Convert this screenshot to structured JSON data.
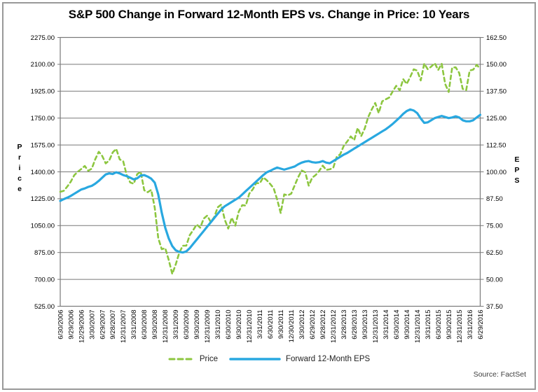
{
  "source": "Source: FactSet",
  "chart_data": {
    "type": "line",
    "title": "S&P 500 Change in Forward 12-Month EPS vs. Change in Price: 10 Years",
    "grid": true,
    "grid_color": "#787878",
    "legend_position": "bottom",
    "x_points_per_tick": 3,
    "x_tick_labels": [
      "6/30/2006",
      "9/29/2006",
      "12/29/2006",
      "3/30/2007",
      "6/29/2007",
      "9/28/2007",
      "12/31/2007",
      "3/31/2008",
      "6/30/2008",
      "9/30/2008",
      "12/31/2008",
      "3/31/2009",
      "6/30/2009",
      "9/30/2009",
      "12/31/2009",
      "3/31/2010",
      "6/30/2010",
      "9/30/2010",
      "12/31/2010",
      "3/31/2011",
      "6/30/2011",
      "9/30/2011",
      "12/30/2011",
      "3/30/2012",
      "6/29/2012",
      "9/28/2012",
      "12/31/2012",
      "3/28/2013",
      "6/28/2013",
      "9/30/2013",
      "12/31/2013",
      "3/31/2014",
      "6/30/2014",
      "9/30/2014",
      "12/31/2014",
      "3/31/2015",
      "6/30/2015",
      "9/30/2015",
      "12/31/2015",
      "3/31/2016",
      "6/29/2016"
    ],
    "left_axis": {
      "title": "Price",
      "min": 525,
      "max": 2275,
      "step": 175,
      "tick_labels": [
        "2275.00",
        "2100.00",
        "1925.00",
        "1750.00",
        "1575.00",
        "1400.00",
        "1225.00",
        "1050.00",
        "875.00",
        "700.00",
        "525.00"
      ]
    },
    "right_axis": {
      "title": "EPS",
      "min": 37.5,
      "max": 162.5,
      "step": 12.5,
      "tick_labels": [
        "162.50",
        "150.00",
        "137.50",
        "125.00",
        "112.50",
        "100.00",
        "87.50",
        "75.00",
        "62.50",
        "50.00",
        "37.50"
      ]
    },
    "series": [
      {
        "name": "Price",
        "axis": "left",
        "color": "#8CC63F",
        "line_style": "dashed",
        "values": [
          1270.2,
          1276.66,
          1303.82,
          1335.85,
          1377.94,
          1400.63,
          1418.3,
          1438.24,
          1406.82,
          1420.86,
          1482.37,
          1530.62,
          1503.35,
          1455.27,
          1473.99,
          1526.75,
          1549.38,
          1481.14,
          1468.36,
          1378.55,
          1330.63,
          1322.7,
          1385.59,
          1400.38,
          1280.0,
          1267.38,
          1282.83,
          1166.36,
          968.75,
          896.24,
          903.25,
          825.88,
          735.09,
          797.87,
          872.81,
          919.14,
          919.32,
          987.48,
          1020.62,
          1057.08,
          1036.19,
          1095.63,
          1115.1,
          1073.87,
          1104.49,
          1169.43,
          1186.69,
          1089.41,
          1030.71,
          1101.6,
          1049.33,
          1141.2,
          1183.26,
          1180.55,
          1257.64,
          1286.12,
          1327.22,
          1325.83,
          1363.61,
          1345.2,
          1320.64,
          1292.28,
          1218.89,
          1131.42,
          1253.3,
          1246.96,
          1257.6,
          1312.41,
          1365.68,
          1408.47,
          1397.91,
          1310.33,
          1362.16,
          1379.32,
          1406.58,
          1440.67,
          1412.16,
          1416.18,
          1426.19,
          1498.11,
          1514.68,
          1569.19,
          1597.57,
          1630.74,
          1606.28,
          1685.73,
          1632.97,
          1681.55,
          1756.54,
          1805.81,
          1848.36,
          1782.59,
          1859.45,
          1872.34,
          1883.95,
          1923.57,
          1960.23,
          1930.67,
          2003.37,
          1972.29,
          2018.05,
          2067.56,
          2058.9,
          1994.99,
          2104.5,
          2067.89,
          2085.51,
          2107.39,
          2063.11,
          2103.84,
          1972.18,
          1920.03,
          2079.36,
          2080.41,
          2043.94,
          1940.24,
          1932.23,
          2059.74,
          2065.3,
          2096.96,
          2070.77
        ]
      },
      {
        "name": "Forward 12-Month EPS",
        "axis": "right",
        "color": "#29A8E0",
        "line_style": "solid",
        "values": [
          86.5,
          87.3,
          88.0,
          88.8,
          89.8,
          90.8,
          91.8,
          92.3,
          93.0,
          93.5,
          94.5,
          95.8,
          97.3,
          98.8,
          99.3,
          99.0,
          99.8,
          99.3,
          98.5,
          98.0,
          97.3,
          96.5,
          97.0,
          98.3,
          98.5,
          97.8,
          96.8,
          95.0,
          89.5,
          81.0,
          74.0,
          69.0,
          65.5,
          63.5,
          62.8,
          62.5,
          63.0,
          64.5,
          66.5,
          68.5,
          70.5,
          72.5,
          74.5,
          76.5,
          78.5,
          80.5,
          82.5,
          84.0,
          85.0,
          86.0,
          87.0,
          88.0,
          89.5,
          91.0,
          92.5,
          94.0,
          95.5,
          97.0,
          98.5,
          99.8,
          100.5,
          101.3,
          102.0,
          101.5,
          101.0,
          101.5,
          102.0,
          102.5,
          103.5,
          104.3,
          104.8,
          105.0,
          104.5,
          104.3,
          104.5,
          105.0,
          104.3,
          104.0,
          105.0,
          106.0,
          107.0,
          108.0,
          108.8,
          109.8,
          110.8,
          111.8,
          112.8,
          113.8,
          114.8,
          115.8,
          116.8,
          117.8,
          118.8,
          119.8,
          121.0,
          122.3,
          123.8,
          125.3,
          127.0,
          128.3,
          129.0,
          128.5,
          127.3,
          124.8,
          122.8,
          123.0,
          124.0,
          125.0,
          125.5,
          126.0,
          125.5,
          125.0,
          125.3,
          125.8,
          125.3,
          124.0,
          123.5,
          123.5,
          124.0,
          125.3,
          126.5
        ]
      }
    ]
  }
}
